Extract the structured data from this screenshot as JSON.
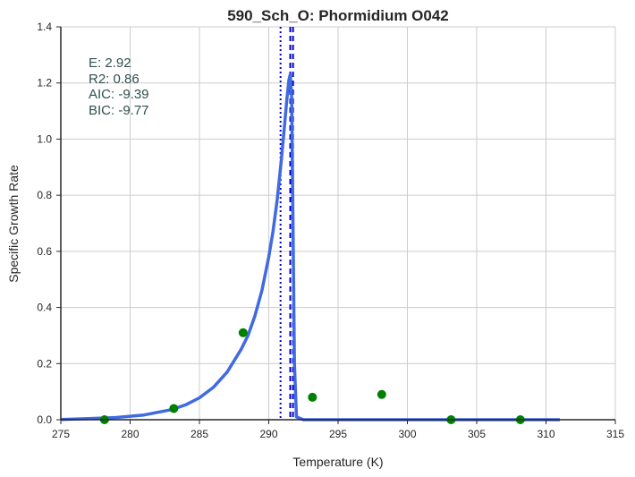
{
  "chart_data": {
    "type": "line",
    "title": "590_Sch_O: Phormidium O042",
    "xlabel": "Temperature (K)",
    "ylabel": "Specific Growth Rate",
    "xlim": [
      275,
      315
    ],
    "ylim": [
      0,
      1.4
    ],
    "xticks": [
      275,
      280,
      285,
      290,
      295,
      300,
      305,
      310,
      315
    ],
    "yticks": [
      0.0,
      0.2,
      0.4,
      0.6,
      0.8,
      1.0,
      1.2,
      1.4
    ],
    "grid": true,
    "series": [
      {
        "kind": "fit-curve",
        "color": "#4169e1",
        "x": [
          275,
          277,
          279,
          281,
          283,
          284,
          285,
          286,
          287,
          288,
          288.5,
          289,
          289.5,
          290,
          290.3,
          290.6,
          290.9,
          291.1,
          291.3,
          291.45,
          291.55,
          291.65,
          291.75,
          291.85,
          292,
          292.5,
          295,
          300,
          305,
          311
        ],
        "y": [
          0.001,
          0.004,
          0.008,
          0.017,
          0.036,
          0.053,
          0.078,
          0.115,
          0.17,
          0.25,
          0.3,
          0.37,
          0.46,
          0.58,
          0.67,
          0.78,
          0.92,
          1.03,
          1.14,
          1.21,
          1.23,
          1.15,
          0.7,
          0.2,
          0.01,
          0.0,
          0.0,
          0.0,
          0.0,
          0.0
        ]
      },
      {
        "kind": "observed",
        "color": "#008000",
        "x": [
          278.15,
          283.15,
          288.15,
          293.15,
          298.15,
          303.15,
          308.15
        ],
        "y": [
          0.0,
          0.04,
          0.31,
          0.08,
          0.09,
          0.0,
          0.0
        ]
      }
    ],
    "vlines": [
      {
        "x": 290.85,
        "style": "dotted",
        "color": "#0000cd"
      },
      {
        "x": 291.55,
        "style": "dashed",
        "color": "#0000cd"
      },
      {
        "x": 291.75,
        "style": "dashed",
        "color": "#0000cd"
      }
    ],
    "annotations": [
      "E:  2.92",
      "R2:  0.86",
      "AIC: -9.39",
      "BIC: -9.77"
    ]
  }
}
